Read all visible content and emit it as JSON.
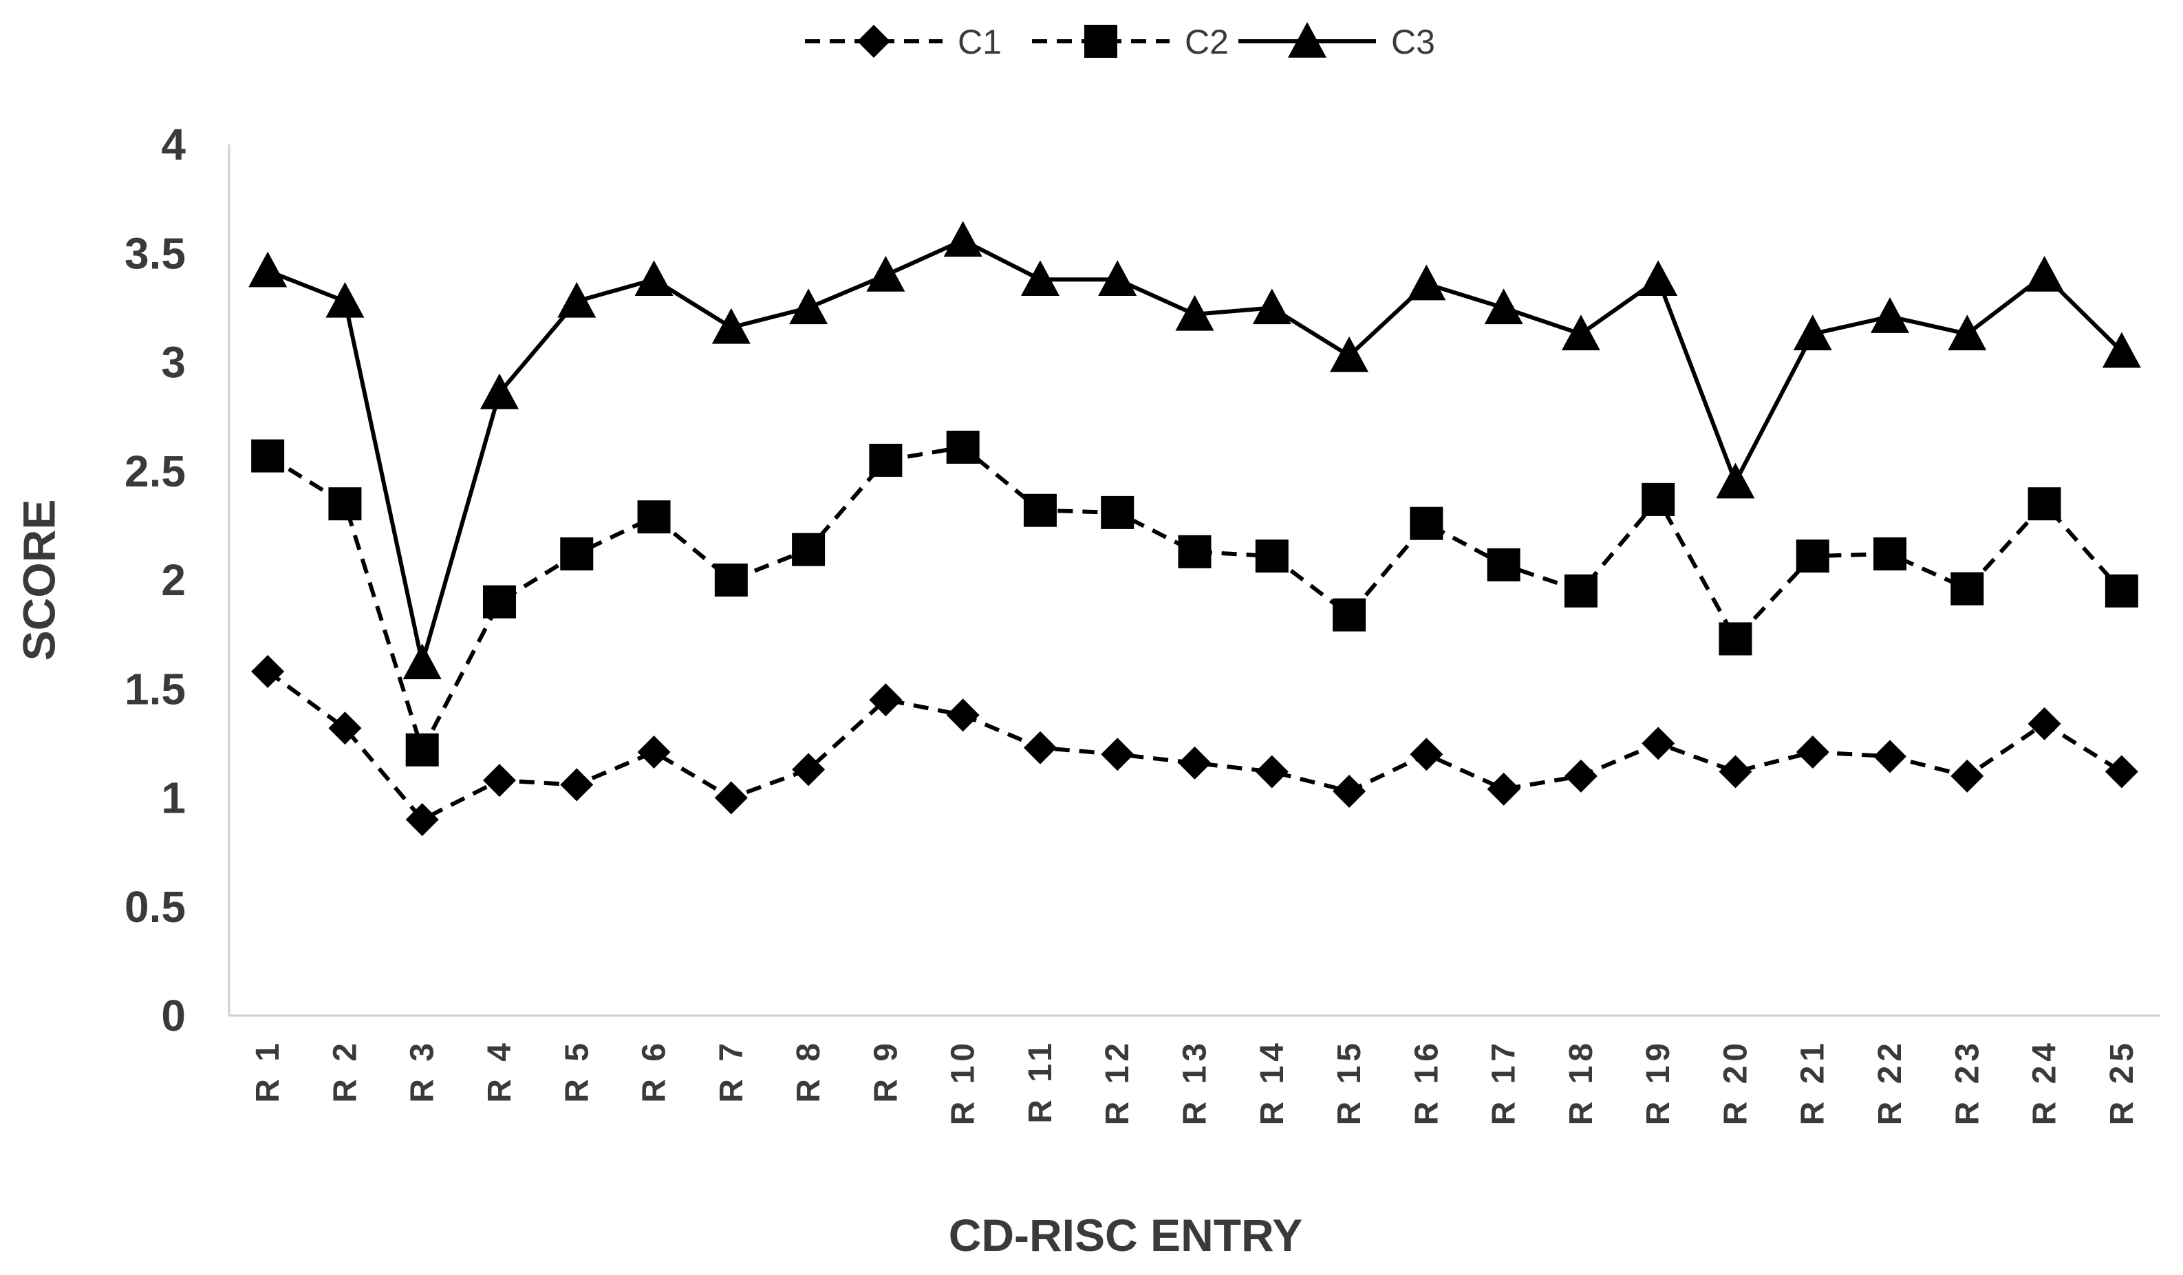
{
  "chart_data": {
    "type": "line",
    "title": "",
    "xlabel": "CD-RISC ENTRY",
    "ylabel": "SCORE",
    "ylim": [
      0,
      4
    ],
    "yticks": [
      "0",
      "0.5",
      "1",
      "1.5",
      "2",
      "2.5",
      "3",
      "3.5",
      "4"
    ],
    "grid": false,
    "legend_position": "top-center",
    "categories": [
      "R 1",
      "R 2",
      "R 3",
      "R 4",
      "R 5",
      "R 6",
      "R 7",
      "R 8",
      "R 9",
      "R 10",
      "R 11",
      "R 12",
      "R 13",
      "R 14",
      "R 15",
      "R 16",
      "R 17",
      "R 18",
      "R 19",
      "R 20",
      "R 21",
      "R 22",
      "R 23",
      "R 24",
      "R 25"
    ],
    "series": [
      {
        "name": "C1",
        "marker": "diamond",
        "line": "dashed",
        "color": "#000000",
        "values": [
          1.58,
          1.32,
          0.9,
          1.08,
          1.06,
          1.21,
          1.0,
          1.13,
          1.45,
          1.38,
          1.23,
          1.2,
          1.16,
          1.12,
          1.03,
          1.2,
          1.04,
          1.1,
          1.25,
          1.12,
          1.21,
          1.19,
          1.1,
          1.34,
          1.12
        ]
      },
      {
        "name": "C2",
        "marker": "square",
        "line": "dashed",
        "color": "#000000",
        "values": [
          2.57,
          2.35,
          1.22,
          1.9,
          2.12,
          2.29,
          2.0,
          2.14,
          2.55,
          2.61,
          2.32,
          2.31,
          2.13,
          2.11,
          1.84,
          2.26,
          2.07,
          1.95,
          2.37,
          1.73,
          2.11,
          2.12,
          1.96,
          2.35,
          1.95
        ]
      },
      {
        "name": "C3",
        "marker": "triangle",
        "line": "solid",
        "color": "#000000",
        "values": [
          3.42,
          3.28,
          1.62,
          2.86,
          3.28,
          3.38,
          3.16,
          3.25,
          3.4,
          3.56,
          3.38,
          3.38,
          3.22,
          3.25,
          3.03,
          3.36,
          3.25,
          3.13,
          3.38,
          2.45,
          3.13,
          3.21,
          3.13,
          3.4,
          3.05
        ]
      }
    ]
  }
}
